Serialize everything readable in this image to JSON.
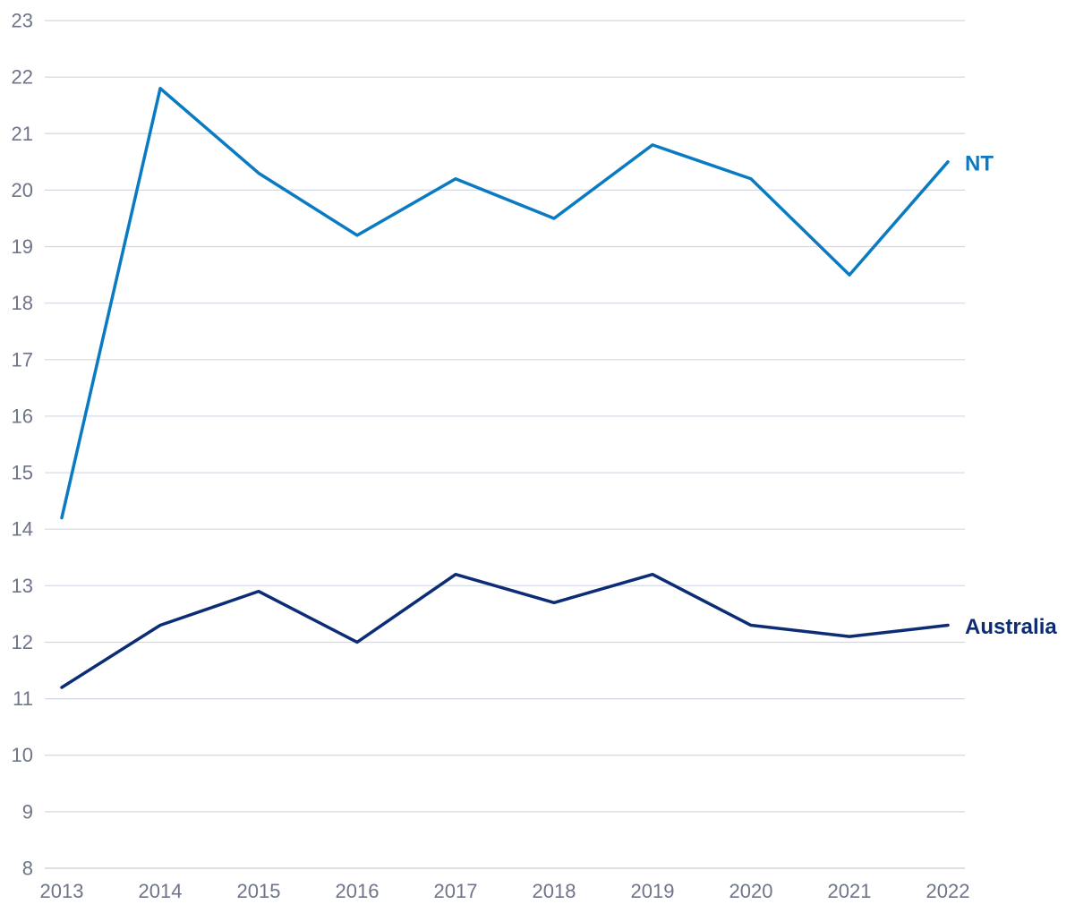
{
  "chart_data": {
    "type": "line",
    "title": "",
    "xlabel": "",
    "ylabel": "",
    "x": [
      "2013",
      "2014",
      "2015",
      "2016",
      "2017",
      "2018",
      "2019",
      "2020",
      "2021",
      "2022"
    ],
    "ylim": [
      8,
      23
    ],
    "yticks": [
      8,
      9,
      10,
      11,
      12,
      13,
      14,
      15,
      16,
      17,
      18,
      19,
      20,
      21,
      22,
      23
    ],
    "grid": true,
    "legend": "inline-right",
    "series": [
      {
        "name": "NT",
        "color": "#0a7bc2",
        "values": [
          14.2,
          21.8,
          20.3,
          19.2,
          20.2,
          19.5,
          20.8,
          20.2,
          18.5,
          20.5
        ]
      },
      {
        "name": "Australia",
        "color": "#0c2d76",
        "values": [
          11.2,
          12.3,
          12.9,
          12.0,
          13.2,
          12.7,
          13.2,
          12.3,
          12.1,
          12.3
        ]
      }
    ]
  }
}
